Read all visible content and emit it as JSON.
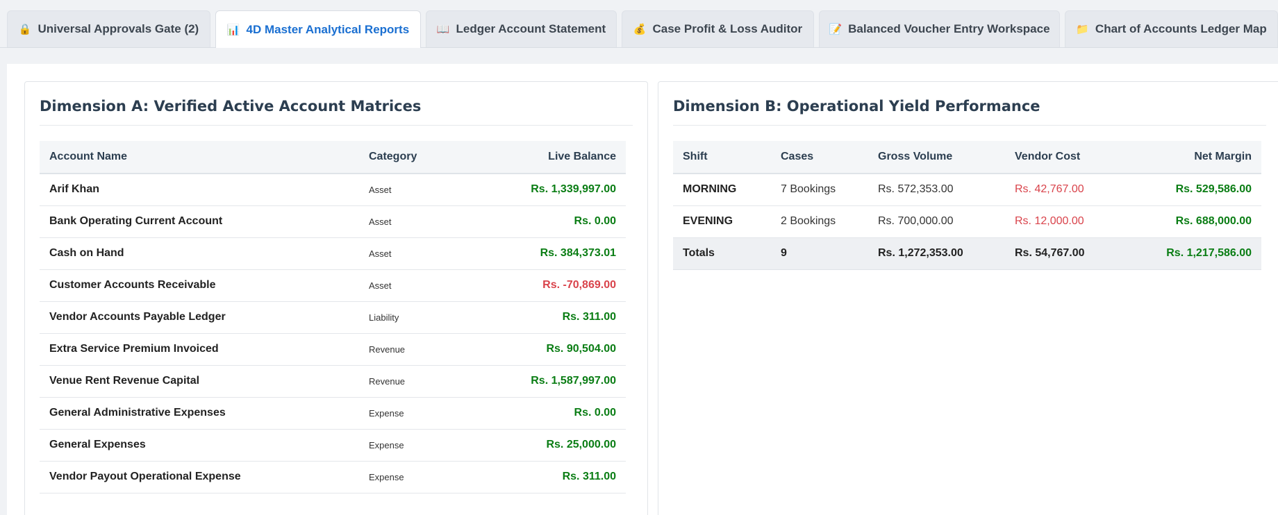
{
  "tabs": [
    {
      "icon": "🔒",
      "label": "Universal Approvals Gate (2)"
    },
    {
      "icon": "📊",
      "label": "4D Master Analytical Reports"
    },
    {
      "icon": "📖",
      "label": "Ledger Account Statement"
    },
    {
      "icon": "💰",
      "label": "Case Profit & Loss Auditor"
    },
    {
      "icon": "📝",
      "label": "Balanced Voucher Entry Workspace"
    },
    {
      "icon": "📁",
      "label": "Chart of Accounts Ledger Map"
    }
  ],
  "active_tab": 1,
  "dimension_a": {
    "title": "Dimension A: Verified Active Account Matrices",
    "headers": [
      "Account Name",
      "Category",
      "Live Balance"
    ],
    "rows": [
      {
        "name": "Arif Khan",
        "category": "Asset",
        "balance": "Rs. 1,339,997.00",
        "status": "positive"
      },
      {
        "name": "Bank Operating Current Account",
        "category": "Asset",
        "balance": "Rs. 0.00",
        "status": "positive"
      },
      {
        "name": "Cash on Hand",
        "category": "Asset",
        "balance": "Rs. 384,373.01",
        "status": "positive"
      },
      {
        "name": "Customer Accounts Receivable",
        "category": "Asset",
        "balance": "Rs. -70,869.00",
        "status": "negative"
      },
      {
        "name": "Vendor Accounts Payable Ledger",
        "category": "Liability",
        "balance": "Rs. 311.00",
        "status": "positive"
      },
      {
        "name": "Extra Service Premium Invoiced",
        "category": "Revenue",
        "balance": "Rs. 90,504.00",
        "status": "positive"
      },
      {
        "name": "Venue Rent Revenue Capital",
        "category": "Revenue",
        "balance": "Rs. 1,587,997.00",
        "status": "positive"
      },
      {
        "name": "General Administrative Expenses",
        "category": "Expense",
        "balance": "Rs. 0.00",
        "status": "positive"
      },
      {
        "name": "General Expenses",
        "category": "Expense",
        "balance": "Rs. 25,000.00",
        "status": "positive"
      },
      {
        "name": "Vendor Payout Operational Expense",
        "category": "Expense",
        "balance": "Rs. 311.00",
        "status": "positive"
      }
    ]
  },
  "dimension_b": {
    "title": "Dimension B: Operational Yield Performance",
    "headers": [
      "Shift",
      "Cases",
      "Gross Volume",
      "Vendor Cost",
      "Net Margin"
    ],
    "rows": [
      {
        "shift": "MORNING",
        "cases": "7 Bookings",
        "gross": "Rs. 572,353.00",
        "cost": "Rs. 42,767.00",
        "net": "Rs. 529,586.00"
      },
      {
        "shift": "EVENING",
        "cases": "2 Bookings",
        "gross": "Rs. 700,000.00",
        "cost": "Rs. 12,000.00",
        "net": "Rs. 688,000.00"
      }
    ],
    "totals": {
      "label": "Totals",
      "cases": "9",
      "gross": "Rs. 1,272,353.00",
      "cost": "Rs. 54,767.00",
      "net": "Rs. 1,217,586.00"
    }
  },
  "colors": {
    "positive": "#0a7d14",
    "negative": "#d9434b",
    "active_tab": "#1a6fd1"
  }
}
